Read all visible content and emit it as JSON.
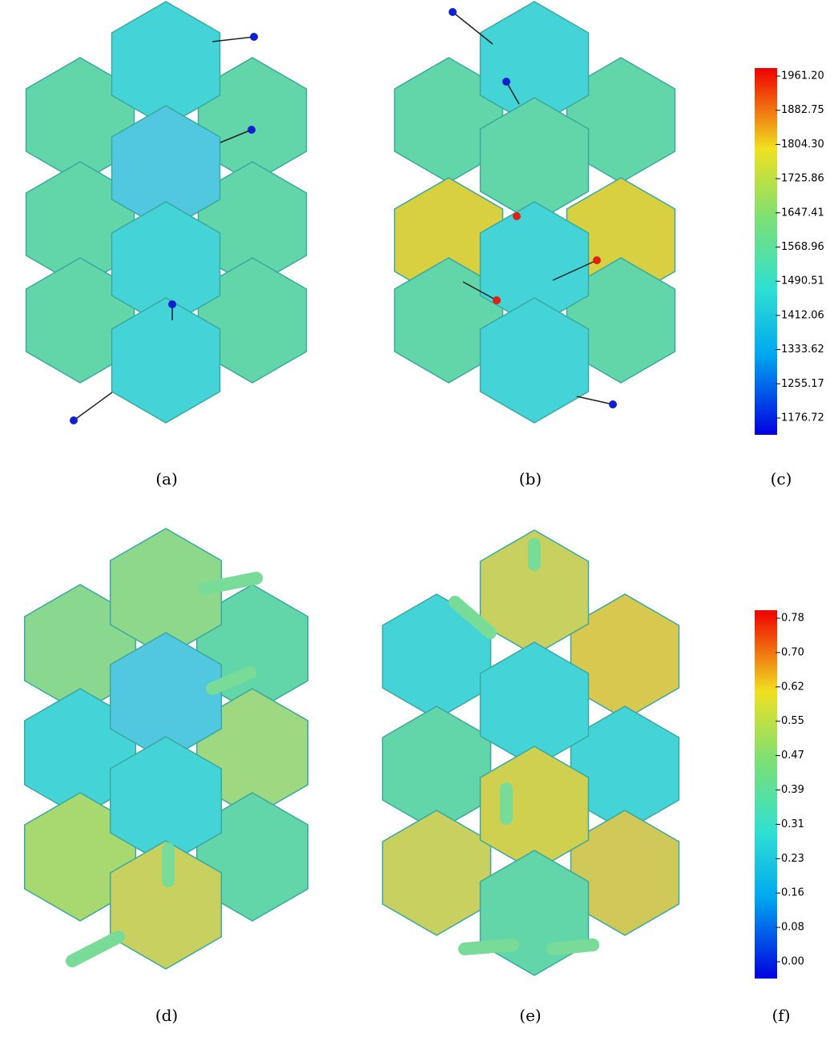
{
  "panels": [
    {
      "caption": "(a)"
    },
    {
      "caption": "(b)"
    },
    {
      "caption": "(c)"
    },
    {
      "caption": "(d)"
    },
    {
      "caption": "(e)"
    },
    {
      "caption": "(f)"
    }
  ],
  "colorbars": [
    {
      "ticks": [
        "1961.20",
        "1882.75",
        "1804.30",
        "1725.86",
        "1647.41",
        "1568.96",
        "1490.51",
        "1412.06",
        "1333.62",
        "1255.17",
        "1176.72"
      ]
    },
    {
      "ticks": [
        "0.78",
        "0.70",
        "0.62",
        "0.55",
        "0.47",
        "0.39",
        "0.31",
        "0.23",
        "0.16",
        "0.08",
        "0.00"
      ]
    }
  ]
}
